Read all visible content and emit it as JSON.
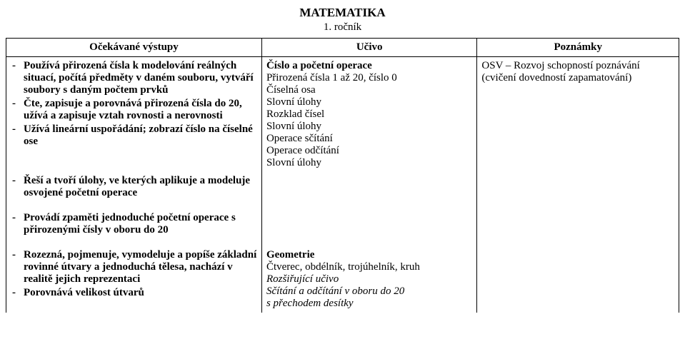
{
  "title": "MATEMATIKA",
  "subtitle": "1. ročník",
  "headers": {
    "col1": "Očekávané výstupy",
    "col2": "Učivo",
    "col3": "Poznámky"
  },
  "row1": {
    "outcomes": [
      "Používá přirozená čísla k modelování reálných situací, počítá předměty v daném souboru, vytváří soubory s daným počtem prvků",
      "Čte, zapisuje a porovnává přirozená čísla do 20, užívá a zapisuje vztah rovnosti a nerovnosti",
      "Užívá lineární uspořádání; zobrazí číslo na číselné ose"
    ],
    "ucivo_title": "Číslo a početní operace",
    "ucivo_lines": [
      "Přirozená čísla 1 až 20, číslo 0",
      "Číselná osa",
      "Slovní úlohy",
      "Rozklad čísel",
      "Slovní úlohy",
      "Operace sčítání",
      "Operace odčítání",
      "Slovní úlohy"
    ],
    "poznamky": [
      "OSV – Rozvoj schopností poznávání (cvičení dovedností zapamatování)"
    ]
  },
  "row2": {
    "outcomes": [
      "Řeší a tvoří úlohy, ve kterých aplikuje a modeluje osvojené početní operace"
    ]
  },
  "row3": {
    "outcomes": [
      "Provádí zpaměti jednoduché početní operace s přirozenými čísly v oboru do 20"
    ]
  },
  "row4": {
    "outcomes": [
      "Rozezná, pojmenuje, vymodeluje a popíše základní rovinné útvary a jednoduchá tělesa, nachází v realitě jejich reprezentaci",
      "Porovnává velikost útvarů"
    ],
    "ucivo_title": "Geometrie",
    "ucivo_line1": "Čtverec, obdélník, trojúhelník, kruh",
    "ucivo_italic_title": "Rozšiřující učivo",
    "ucivo_italic_lines": [
      "Sčítání a odčítání v oboru do 20",
      "s přechodem desítky"
    ]
  }
}
